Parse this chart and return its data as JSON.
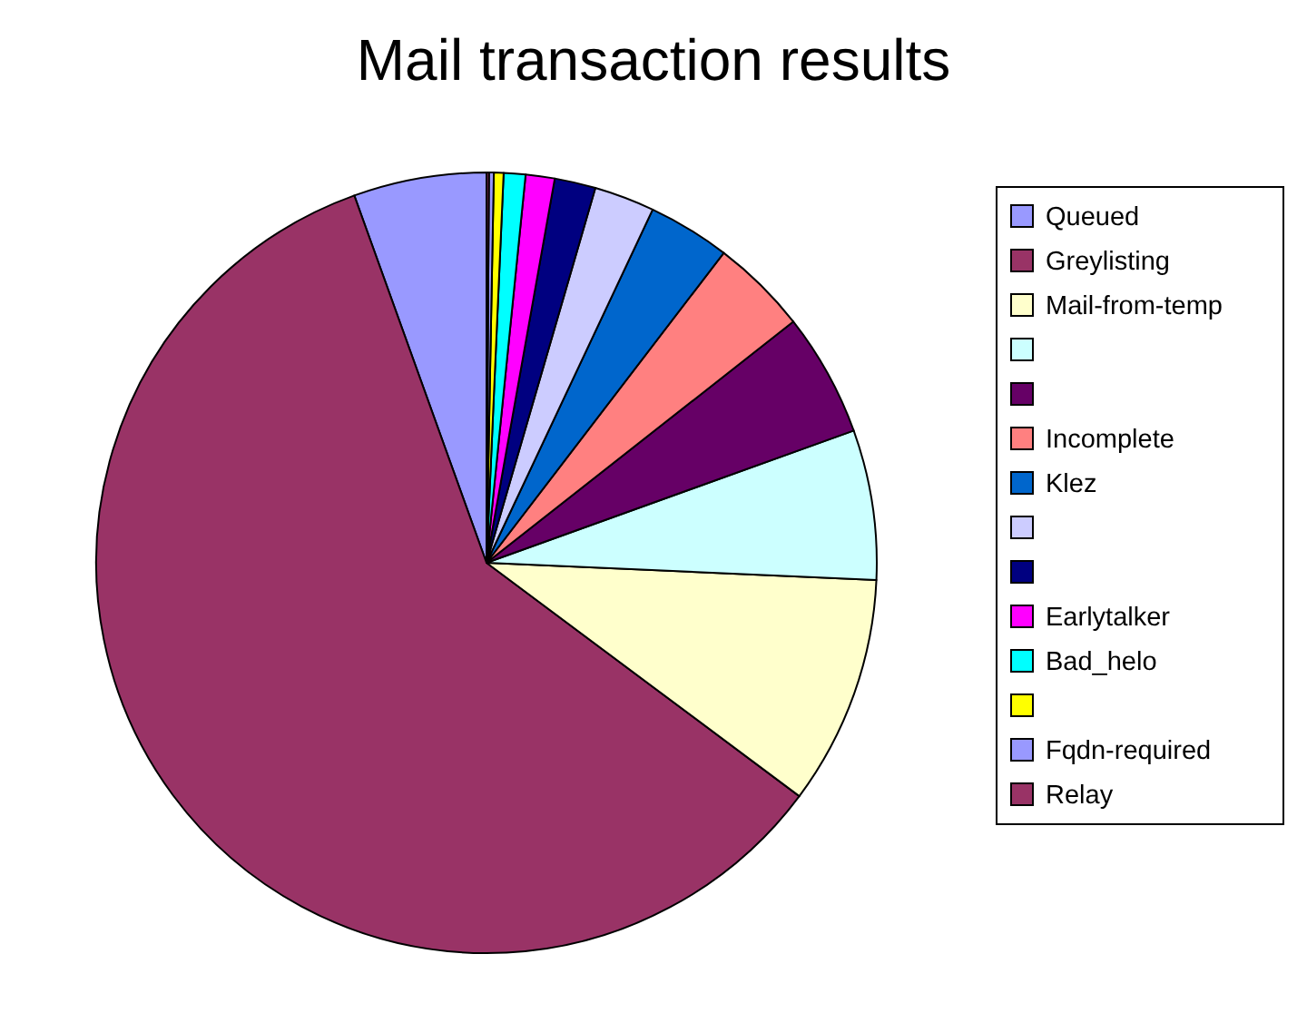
{
  "chart_data": {
    "type": "pie",
    "title": "Mail transaction results",
    "categories": [
      "Queued",
      "Greylisting",
      "Mail-from-temp",
      null,
      null,
      "Incomplete",
      "Klez",
      null,
      null,
      "Earlytalker",
      "Bad_helo",
      null,
      "Fqdn-required",
      "Relay"
    ],
    "values": [
      5.5,
      59.3,
      9.5,
      6.2,
      5.1,
      4.0,
      3.4,
      2.5,
      1.7,
      1.2,
      0.9,
      0.4,
      0.2,
      0.1
    ],
    "colors": [
      "#9999ff",
      "#993366",
      "#ffffcc",
      "#ccffff",
      "#660066",
      "#ff8080",
      "#0066cc",
      "#ccccff",
      "#000080",
      "#ff00ff",
      "#00ffff",
      "#ffff00",
      "#9999ff",
      "#993366"
    ],
    "legend": "right"
  }
}
